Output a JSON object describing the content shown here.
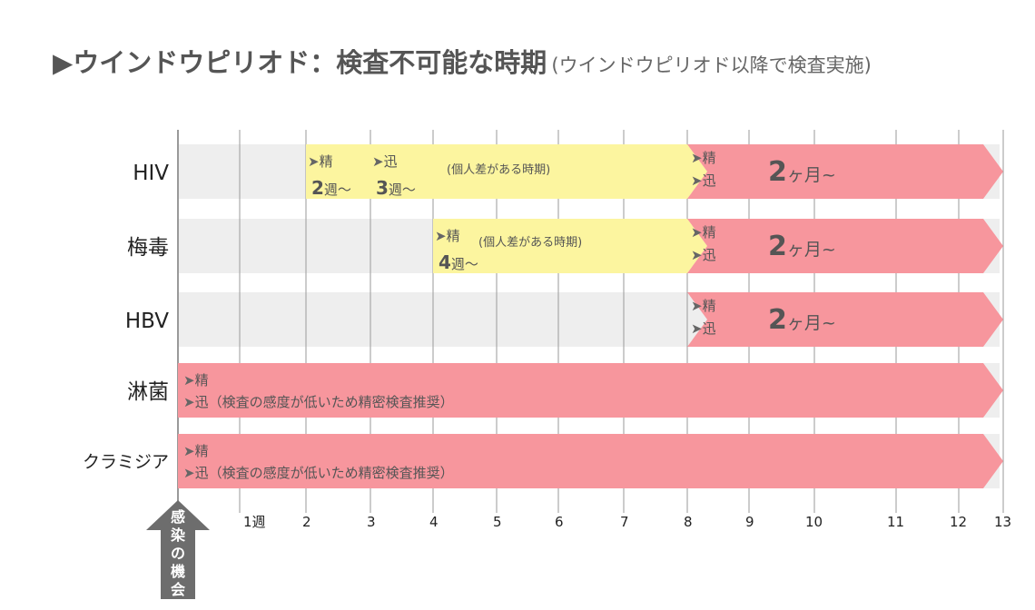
{
  "title": {
    "main": "▶ウインドウピリオド：検査不可能な時期",
    "sub": "(ウインドウピリオド以降で検査実施)"
  },
  "colors": {
    "pending": "#fcf59f",
    "testable": "#f7969d",
    "track": "#eeeeee",
    "grid": "#999999",
    "text": "#555555",
    "arrow": "#666666"
  },
  "chart_data": {
    "type": "timeline",
    "x_ticks": [
      {
        "value": 0,
        "label": ""
      },
      {
        "value": 1,
        "label": "1週"
      },
      {
        "value": 2,
        "label": "2"
      },
      {
        "value": 3,
        "label": "3"
      },
      {
        "value": 4,
        "label": "4"
      },
      {
        "value": 5,
        "label": "5"
      },
      {
        "value": 6,
        "label": "6"
      },
      {
        "value": 7,
        "label": "7"
      },
      {
        "value": 8,
        "label": "8"
      },
      {
        "value": 9,
        "label": "9"
      },
      {
        "value": 10,
        "label": "10"
      },
      {
        "value": 11,
        "label": "11"
      },
      {
        "value": 12,
        "label": "12"
      },
      {
        "value": 13,
        "label": "13"
      }
    ],
    "xlim": [
      0,
      13
    ],
    "origin_label": "感染の機会",
    "rows": [
      {
        "name": "HIV",
        "window": {
          "start": 2,
          "end": 8,
          "note": "(個人差がある時期)"
        },
        "window_markers": [
          {
            "at": 2,
            "test": "精",
            "value": "2",
            "unit": "週〜"
          },
          {
            "at": 3,
            "test": "迅",
            "value": "3",
            "unit": "週〜"
          }
        ],
        "testable": {
          "start": 8,
          "end": 13,
          "tests": [
            "精",
            "迅"
          ],
          "value": "2",
          "unit": "ヶ月~"
        }
      },
      {
        "name": "梅毒",
        "window": {
          "start": 4,
          "end": 8,
          "note": "(個人差がある時期)"
        },
        "window_markers": [
          {
            "at": 4,
            "test": "精",
            "value": "4",
            "unit": "週〜"
          }
        ],
        "testable": {
          "start": 8,
          "end": 13,
          "tests": [
            "精",
            "迅"
          ],
          "value": "2",
          "unit": "ヶ月~"
        }
      },
      {
        "name": "HBV",
        "testable": {
          "start": 8,
          "end": 13,
          "tests": [
            "精",
            "迅"
          ],
          "value": "2",
          "unit": "ヶ月~"
        }
      },
      {
        "name": "淋菌",
        "testable": {
          "start": 0,
          "end": 13,
          "lines": [
            "精",
            "迅（検査の感度が低いため精密検査推奨）"
          ]
        }
      },
      {
        "name": "クラミジア",
        "testable": {
          "start": 0,
          "end": 13,
          "lines": [
            "精",
            "迅（検査の感度が低いため精密検査推奨）"
          ]
        }
      }
    ]
  }
}
